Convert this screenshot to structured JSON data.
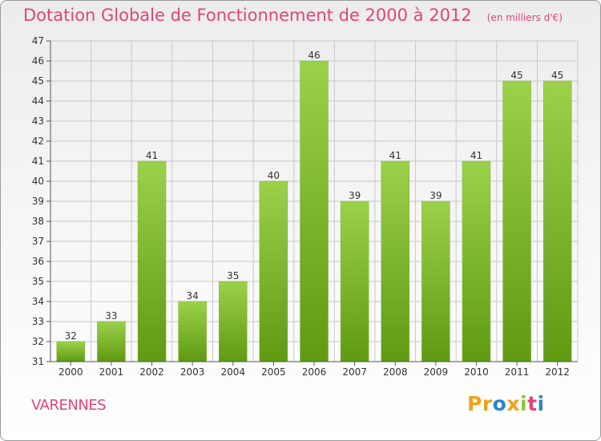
{
  "header": {
    "title": "Dotation Globale de Fonctionnement de 2000 à 2012",
    "subtitle": "(en milliers d'€)"
  },
  "footer": {
    "place": "VARENNES",
    "brand": "Proxiti"
  },
  "colors": {
    "accent": "#e0457b",
    "bar_top": "#9cd14a",
    "bar_bottom": "#5f9a12",
    "grid": "#c8c8c8",
    "logo_letters": [
      "#f0a11a",
      "#f0a11a",
      "#2a86c9",
      "#f0a11a",
      "#8bc53f",
      "#e0457b",
      "#2a86c9"
    ]
  },
  "chart_data": {
    "type": "bar",
    "title": "Dotation Globale de Fonctionnement de 2000 à 2012",
    "subtitle": "(en milliers d'€)",
    "categories": [
      "2000",
      "2001",
      "2002",
      "2003",
      "2004",
      "2005",
      "2006",
      "2007",
      "2008",
      "2009",
      "2010",
      "2011",
      "2012"
    ],
    "values": [
      32,
      33,
      41,
      34,
      35,
      40,
      46,
      39,
      41,
      39,
      41,
      45,
      45
    ],
    "yticks": [
      "31",
      "32",
      "33",
      "34",
      "35",
      "36",
      "37",
      "38",
      "39",
      "40",
      "41",
      "42",
      "43",
      "44",
      "45",
      "46",
      "47"
    ],
    "ylim": [
      31,
      47
    ],
    "grid": true,
    "legend": false
  }
}
